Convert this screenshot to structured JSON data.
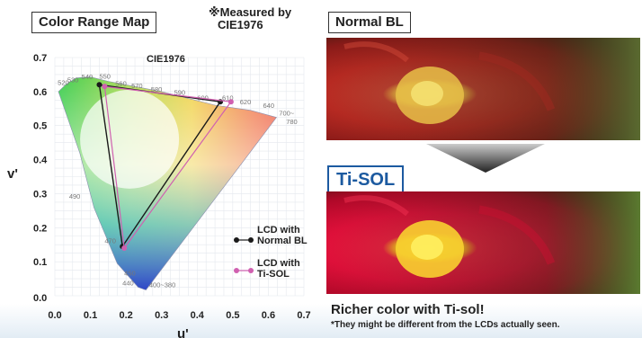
{
  "header": {
    "map_title": "Color Range Map",
    "measured_note_line1": "※Measured by",
    "measured_note_line2": "CIE1976",
    "normal_label": "Normal BL",
    "tisol_label": "Ti-SOL"
  },
  "footer": {
    "richer": "Richer color with Ti-sol!",
    "disclaimer": "*They might be different from the LCDs actually seen."
  },
  "colors": {
    "normal_series": "#1a1a1a",
    "tisol_series": "#d060b0",
    "tisol_accent": "#1c5aa0"
  },
  "photos": [
    {
      "name": "normal-bl-flower-photo"
    },
    {
      "name": "ti-sol-flower-photo"
    }
  ],
  "chart_data": {
    "type": "scatter",
    "title": "CIE1976",
    "xlabel": "u'",
    "ylabel": "v'",
    "xlim": [
      0,
      0.7
    ],
    "ylim": [
      0,
      0.7
    ],
    "x_ticks": [
      "0.0",
      "0.1",
      "0.2",
      "0.3",
      "0.4",
      "0.5",
      "0.6",
      "0.7"
    ],
    "y_ticks": [
      "0.0",
      "0.1",
      "0.2",
      "0.3",
      "0.4",
      "0.5",
      "0.6",
      "0.7"
    ],
    "grid": true,
    "spectral_locus": [
      [
        0.256,
        0.017
      ],
      [
        0.234,
        0.025
      ],
      [
        0.175,
        0.095
      ],
      [
        0.11,
        0.259
      ],
      [
        0.07,
        0.42
      ],
      [
        0.03,
        0.54
      ],
      [
        0.01,
        0.6
      ],
      [
        0.03,
        0.62
      ],
      [
        0.06,
        0.64
      ],
      [
        0.1,
        0.643
      ],
      [
        0.15,
        0.63
      ],
      [
        0.3,
        0.6
      ],
      [
        0.45,
        0.56
      ],
      [
        0.55,
        0.545
      ],
      [
        0.623,
        0.524
      ]
    ],
    "wavelength_labels": [
      {
        "text": "530",
        "u": 0.035,
        "v": 0.628
      },
      {
        "text": "540",
        "u": 0.075,
        "v": 0.636
      },
      {
        "text": "550",
        "u": 0.125,
        "v": 0.638
      },
      {
        "text": "560",
        "u": 0.17,
        "v": 0.617
      },
      {
        "text": "570",
        "u": 0.215,
        "v": 0.61
      },
      {
        "text": "580",
        "u": 0.27,
        "v": 0.6
      },
      {
        "text": "590",
        "u": 0.335,
        "v": 0.59
      },
      {
        "text": "600",
        "u": 0.4,
        "v": 0.575
      },
      {
        "text": "610",
        "u": 0.47,
        "v": 0.575
      },
      {
        "text": "620",
        "u": 0.52,
        "v": 0.562
      },
      {
        "text": "640",
        "u": 0.585,
        "v": 0.552
      },
      {
        "text": "700~",
        "u": 0.63,
        "v": 0.53
      },
      {
        "text": "780",
        "u": 0.65,
        "v": 0.505
      },
      {
        "text": "490",
        "u": 0.04,
        "v": 0.285
      },
      {
        "text": "470",
        "u": 0.14,
        "v": 0.155
      },
      {
        "text": "450",
        "u": 0.195,
        "v": 0.06
      },
      {
        "text": "440",
        "u": 0.19,
        "v": 0.03
      },
      {
        "text": "400~380",
        "u": 0.265,
        "v": 0.025
      },
      {
        "text": "520",
        "u": 0.008,
        "v": 0.62
      }
    ],
    "series": [
      {
        "name": "LCD with Normal BL",
        "points": [
          [
            0.125,
            0.62
          ],
          [
            0.465,
            0.57
          ],
          [
            0.19,
            0.145
          ]
        ]
      },
      {
        "name": "LCD with Ti-SOL",
        "points": [
          [
            0.14,
            0.615
          ],
          [
            0.495,
            0.57
          ],
          [
            0.195,
            0.14
          ]
        ]
      }
    ],
    "legend": {
      "placement": "bottom-right",
      "normal_line1": "LCD with",
      "normal_line2": "Normal BL",
      "tisol_line1": "LCD with",
      "tisol_line2": "Ti-SOL"
    }
  }
}
